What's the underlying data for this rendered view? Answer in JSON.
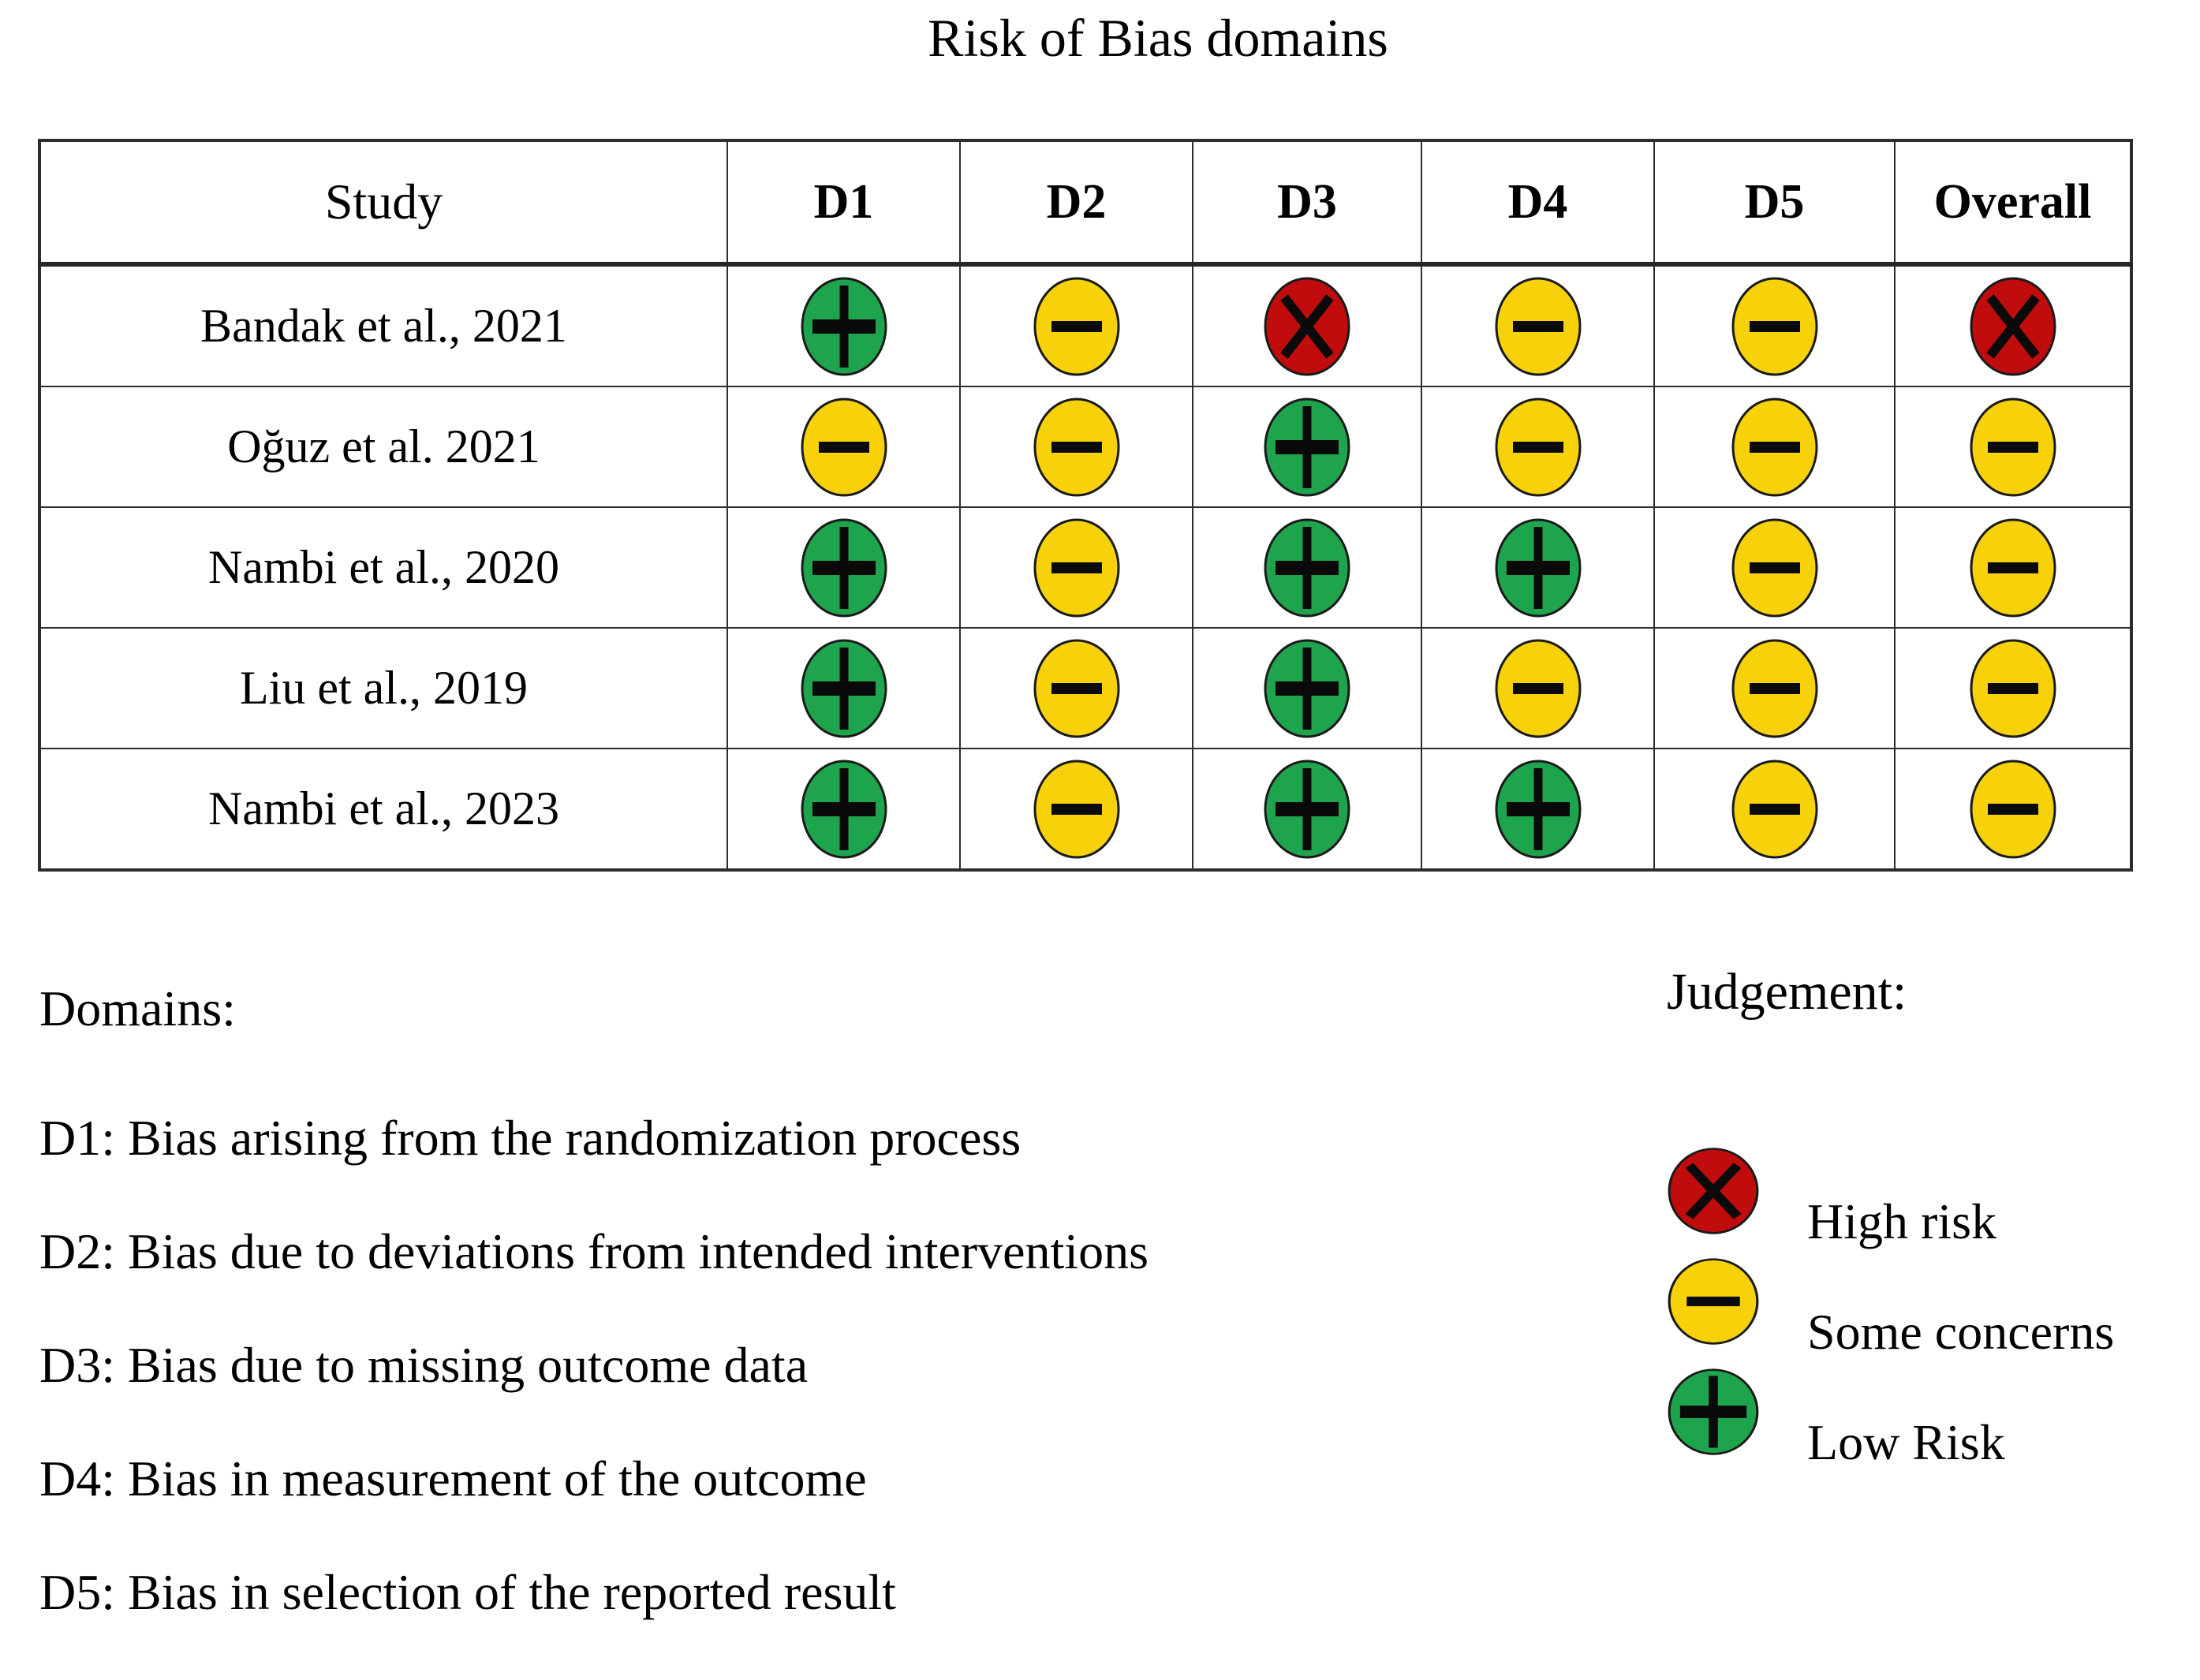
{
  "title": "Risk of Bias domains",
  "table": {
    "columns": [
      "Study",
      "D1",
      "D2",
      "D3",
      "D4",
      "D5",
      "Overall"
    ],
    "rows": [
      {
        "study": "Bandak et al., 2021",
        "judgments": [
          "low",
          "some",
          "high",
          "some",
          "some",
          "high"
        ]
      },
      {
        "study": "Oğuz et al. 2021",
        "judgments": [
          "some",
          "some",
          "low",
          "some",
          "some",
          "some"
        ]
      },
      {
        "study": "Nambi et al., 2020",
        "judgments": [
          "low",
          "some",
          "low",
          "low",
          "some",
          "some"
        ]
      },
      {
        "study": "Liu et al., 2019",
        "judgments": [
          "low",
          "some",
          "low",
          "some",
          "some",
          "some"
        ]
      },
      {
        "study": "Nambi et al., 2023",
        "judgments": [
          "low",
          "some",
          "low",
          "low",
          "some",
          "some"
        ]
      }
    ]
  },
  "domains_note": {
    "heading": "Domains:",
    "items": [
      "D1: Bias arising from the randomization process",
      "D2: Bias due to deviations from intended interventions",
      "D3: Bias due to missing outcome data",
      "D4: Bias in measurement of the outcome",
      "D5: Bias in selection of the reported result"
    ]
  },
  "legend": {
    "heading": "Judgement:",
    "order": [
      "high",
      "some",
      "low"
    ],
    "items": {
      "high": {
        "label": "High risk",
        "color": "#C00C0C",
        "symbol": "x"
      },
      "some": {
        "label": "Some concerns",
        "color": "#F7D20A",
        "symbol": "minus"
      },
      "low": {
        "label": "Low Risk",
        "color": "#1FA44E",
        "symbol": "plus"
      }
    }
  },
  "colors": {
    "high": "#C00C0C",
    "some": "#F7D20A",
    "low": "#1FA44E",
    "outline": "#1A1A1A",
    "symbol": "#0A0A0A",
    "grid": "#2D2D2D"
  }
}
